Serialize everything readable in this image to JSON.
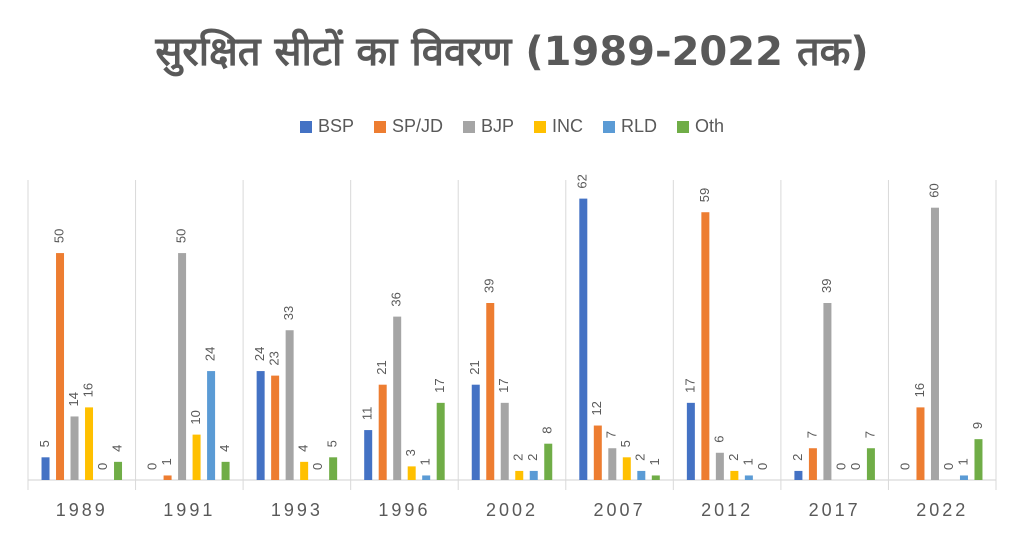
{
  "chart_data": {
    "type": "bar",
    "title": "सुरक्षित सीटों का विवरण (1989-2022 तक)",
    "xlabel": "",
    "ylabel": "",
    "ylim": [
      0,
      65
    ],
    "legend_position": "top",
    "categories": [
      "1989",
      "1991",
      "1993",
      "1996",
      "2002",
      "2007",
      "2012",
      "2017",
      "2022"
    ],
    "series": [
      {
        "name": "BSP",
        "color": "#4472C4",
        "values": [
          5,
          0,
          24,
          11,
          21,
          62,
          17,
          2,
          0
        ]
      },
      {
        "name": "SP/JD",
        "color": "#ED7D31",
        "values": [
          50,
          1,
          23,
          21,
          39,
          12,
          59,
          7,
          16
        ]
      },
      {
        "name": "BJP",
        "color": "#A5A5A5",
        "values": [
          14,
          50,
          33,
          36,
          17,
          7,
          6,
          39,
          60
        ]
      },
      {
        "name": "INC",
        "color": "#FFC000",
        "values": [
          16,
          10,
          4,
          3,
          2,
          5,
          2,
          0,
          0
        ]
      },
      {
        "name": "RLD",
        "color": "#5B9BD5",
        "values": [
          0,
          24,
          0,
          1,
          2,
          2,
          1,
          0,
          1
        ]
      },
      {
        "name": "Oth",
        "color": "#70AD47",
        "values": [
          4,
          4,
          5,
          17,
          8,
          1,
          0,
          7,
          9
        ]
      }
    ]
  }
}
